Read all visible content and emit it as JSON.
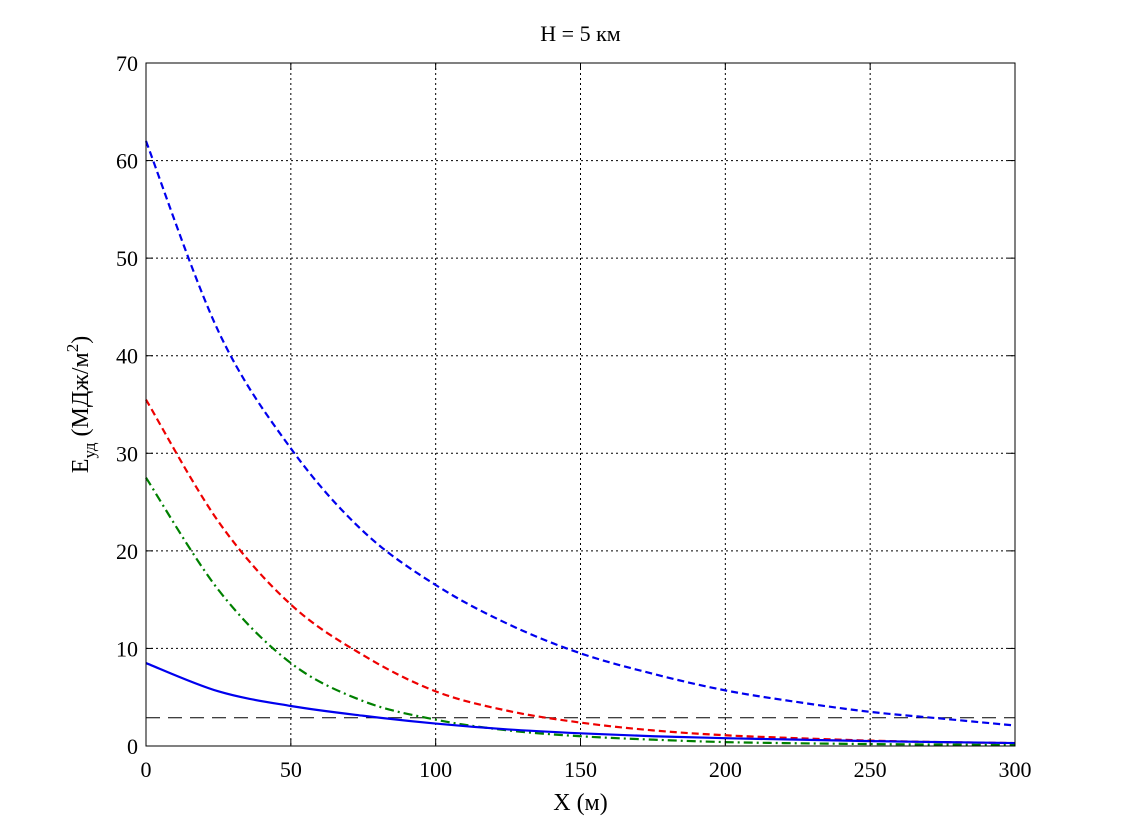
{
  "chart_data": {
    "type": "line",
    "title": "H = 5 км",
    "xlabel": "X (м)",
    "ylabel": {
      "main": "E",
      "sub": "уд",
      "unit_before": " (МДж/м",
      "unit_sup": "2",
      "unit_after": ")"
    },
    "xlim": [
      0,
      300
    ],
    "ylim": [
      0,
      70
    ],
    "xticks": [
      0,
      50,
      100,
      150,
      200,
      250,
      300
    ],
    "yticks": [
      0,
      10,
      20,
      30,
      40,
      50,
      60,
      70
    ],
    "grid": true,
    "x": [
      0,
      25,
      50,
      75,
      100,
      125,
      150,
      175,
      200,
      225,
      250,
      275,
      300
    ],
    "series": [
      {
        "style": "dashed",
        "color": "#0000ee",
        "values": [
          62.0,
          42.5,
          30.5,
          22.0,
          16.5,
          12.5,
          9.5,
          7.4,
          5.7,
          4.5,
          3.5,
          2.8,
          2.1
        ]
      },
      {
        "style": "dashed",
        "color": "#ee0000",
        "values": [
          35.5,
          23.0,
          14.5,
          9.3,
          5.6,
          3.6,
          2.4,
          1.6,
          1.1,
          0.8,
          0.55,
          0.4,
          0.3
        ]
      },
      {
        "style": "dashdot",
        "color": "#008000",
        "values": [
          27.5,
          16.0,
          8.5,
          4.6,
          2.7,
          1.6,
          1.0,
          0.65,
          0.4,
          0.28,
          0.2,
          0.15,
          0.1
        ]
      },
      {
        "style": "solid",
        "color": "#0000ee",
        "values": [
          8.5,
          5.6,
          4.1,
          3.1,
          2.3,
          1.7,
          1.3,
          1.0,
          0.8,
          0.65,
          0.5,
          0.4,
          0.3
        ]
      }
    ],
    "reference_lines": [
      {
        "y": 2.9,
        "style": "longdash",
        "color": "#000000"
      }
    ]
  }
}
